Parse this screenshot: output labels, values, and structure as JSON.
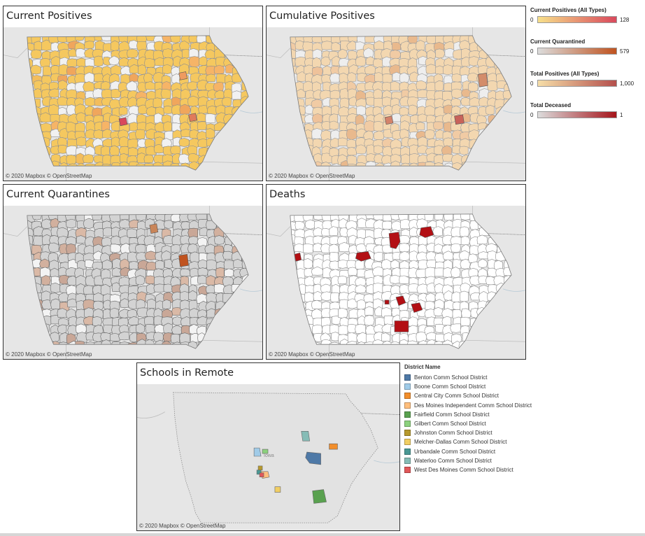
{
  "panels": {
    "current_positives": {
      "title": "Current Positives",
      "attribution": "© 2020 Mapbox  © OpenStreetMap"
    },
    "cumulative_positives": {
      "title": "Cumulative Positives",
      "attribution": "© 2020 Mapbox  © OpenStreetMap"
    },
    "current_quarantines": {
      "title": "Current Quarantines",
      "attribution": "© 2020 Mapbox  © OpenStreetMap"
    },
    "deaths": {
      "title": "Deaths",
      "attribution": "© 2020 Mapbox  © OpenStreetMap"
    },
    "schools_remote": {
      "title": "Schools in Remote",
      "attribution": "© 2020 Mapbox  © OpenStreetMap",
      "map_label": "Iowa"
    }
  },
  "legends": {
    "current_positives": {
      "title": "Current Positives (All Types)",
      "min": "0",
      "max": "128",
      "color_low": "#f7e08a",
      "color_high": "#d9495c"
    },
    "current_quarantined": {
      "title": "Current Quarantined",
      "min": "0",
      "max": "579",
      "color_low": "#dcdcdc",
      "color_high": "#c0531f"
    },
    "total_positives": {
      "title": "Total Positives (All Types)",
      "min": "0",
      "max": "1,000",
      "color_low": "#f6dea8",
      "color_high": "#b44f4c"
    },
    "total_deceased": {
      "title": "Total Deceased",
      "min": "0",
      "max": "1",
      "color_low": "#dcdcdc",
      "color_high": "#a5141a"
    }
  },
  "district_legend": {
    "title": "District Name",
    "items": [
      {
        "name": "Benton Comm School District",
        "color": "#4e79a7"
      },
      {
        "name": "Boone Comm School District",
        "color": "#a0cbe8"
      },
      {
        "name": "Central City Comm School District",
        "color": "#f28e2b"
      },
      {
        "name": "Des Moines Independent Comm School District",
        "color": "#ffbe7d"
      },
      {
        "name": "Fairfield Comm School District",
        "color": "#59a14f"
      },
      {
        "name": "Gilbert Comm School District",
        "color": "#8cd17d"
      },
      {
        "name": "Johnston Comm School District",
        "color": "#b6992d"
      },
      {
        "name": "Melcher-Dallas Comm School District",
        "color": "#f1ce63"
      },
      {
        "name": "Urbandale Comm School District",
        "color": "#499894"
      },
      {
        "name": "Waterloo Comm School District",
        "color": "#86bcb6"
      },
      {
        "name": "West Des Moines Comm School District",
        "color": "#e15759"
      }
    ]
  },
  "colors": {
    "map_background": "#e6e6e6",
    "positives_fill": "#f5c85f",
    "cumulative_fill": "#f3d7b0",
    "quarantine_fill": "#d3d3d3",
    "deaths_fill": "#ffffff",
    "death_highlight": "#b30f14"
  }
}
